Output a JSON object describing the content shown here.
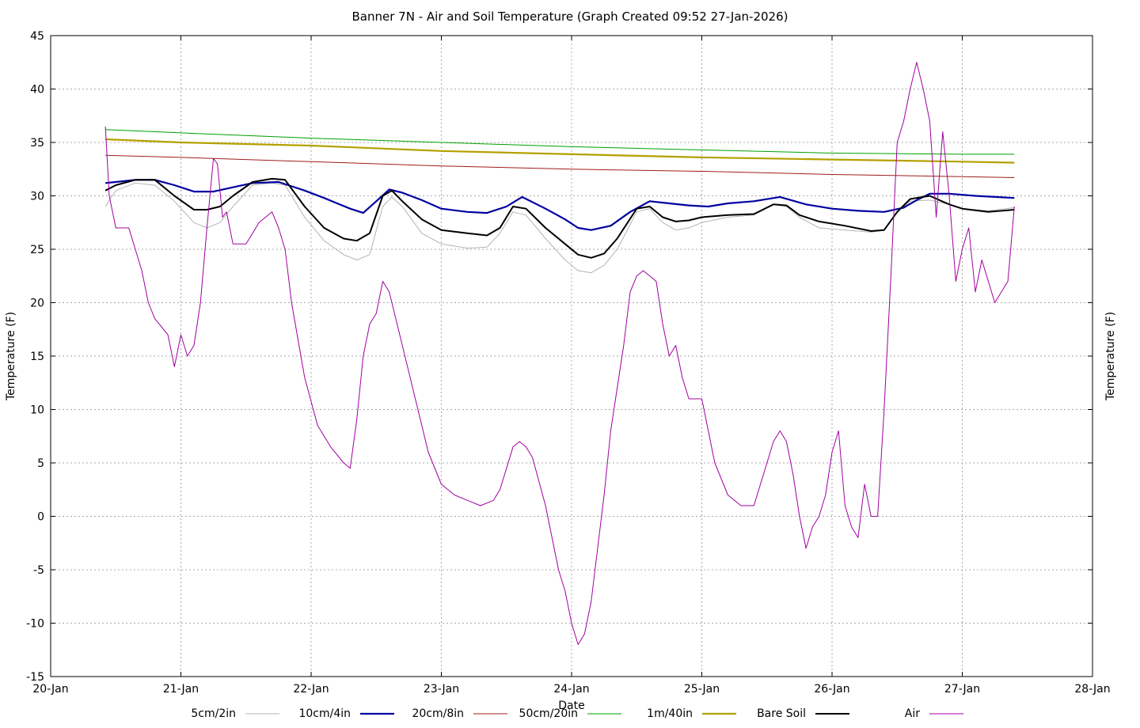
{
  "chart_data": {
    "type": "line",
    "title": "Banner 7N - Air and Soil Temperature (Graph Created 09:52 27-Jan-2026)",
    "xlabel": "Date",
    "ylabel": "Temperature (F)",
    "ylabel_right": "Temperature (F)",
    "ylim": [
      -15,
      45
    ],
    "yticks": [
      "-15",
      "-10",
      "-5",
      "0",
      "5",
      "10",
      "15",
      "20",
      "25",
      "30",
      "35",
      "40",
      "45"
    ],
    "xlim": [
      0,
      8
    ],
    "xticks": [
      "20-Jan",
      "21-Jan",
      "22-Jan",
      "23-Jan",
      "24-Jan",
      "25-Jan",
      "26-Jan",
      "27-Jan",
      "28-Jan"
    ],
    "x_unit": "days since 20-Jan 00:00",
    "grid": true,
    "legend": "bottom",
    "series": [
      {
        "name": "5cm/2in",
        "color": "#b4b4b4",
        "width": 1,
        "x": [
          0.42,
          0.5,
          0.65,
          0.8,
          0.95,
          1.1,
          1.2,
          1.3,
          1.4,
          1.55,
          1.7,
          1.8,
          1.95,
          2.1,
          2.25,
          2.35,
          2.45,
          2.55,
          2.62,
          2.7,
          2.85,
          3.0,
          3.2,
          3.35,
          3.45,
          3.55,
          3.65,
          3.8,
          3.95,
          4.05,
          4.15,
          4.25,
          4.35,
          4.5,
          4.6,
          4.7,
          4.8,
          4.9,
          5.0,
          5.2,
          5.4,
          5.55,
          5.65,
          5.75,
          5.9,
          6.1,
          6.3,
          6.4,
          6.5,
          6.6,
          6.75,
          6.9,
          7.0,
          7.2,
          7.4
        ],
        "y": [
          29.0,
          30.5,
          31.2,
          31.0,
          29.5,
          27.5,
          27.0,
          27.5,
          29.0,
          31.0,
          31.2,
          31.0,
          28.0,
          25.8,
          24.5,
          24.0,
          24.5,
          29.0,
          29.9,
          29.0,
          26.5,
          25.5,
          25.1,
          25.2,
          26.5,
          28.5,
          28.2,
          26.0,
          24.0,
          23.0,
          22.8,
          23.5,
          25.0,
          28.5,
          28.8,
          27.5,
          26.8,
          27.0,
          27.5,
          28.0,
          28.2,
          29.2,
          29.0,
          28.0,
          27.0,
          26.8,
          26.6,
          26.8,
          28.5,
          29.5,
          29.6,
          29.2,
          28.8,
          28.6,
          28.9
        ]
      },
      {
        "name": "10cm/4in",
        "color": "#0000a0",
        "width": 2.2,
        "x": [
          0.42,
          0.5,
          0.65,
          0.8,
          0.95,
          1.1,
          1.25,
          1.4,
          1.55,
          1.75,
          1.95,
          2.1,
          2.2,
          2.3,
          2.4,
          2.5,
          2.6,
          2.7,
          2.85,
          3.0,
          3.2,
          3.35,
          3.5,
          3.62,
          3.8,
          3.95,
          4.05,
          4.15,
          4.3,
          4.45,
          4.6,
          4.75,
          4.9,
          5.05,
          5.2,
          5.4,
          5.6,
          5.8,
          6.0,
          6.2,
          6.4,
          6.55,
          6.65,
          6.75,
          6.9,
          7.1,
          7.4
        ],
        "y": [
          31.2,
          31.3,
          31.5,
          31.5,
          31.0,
          30.4,
          30.4,
          30.8,
          31.2,
          31.3,
          30.5,
          29.8,
          29.3,
          28.8,
          28.4,
          29.5,
          30.6,
          30.3,
          29.6,
          28.8,
          28.5,
          28.4,
          29.0,
          29.9,
          28.8,
          27.8,
          27.0,
          26.8,
          27.2,
          28.5,
          29.5,
          29.3,
          29.1,
          29.0,
          29.3,
          29.5,
          29.9,
          29.2,
          28.8,
          28.6,
          28.5,
          28.9,
          29.6,
          30.2,
          30.2,
          30.0,
          29.8
        ]
      },
      {
        "name": "20cm/8in",
        "color": "#a01c1c",
        "width": 1,
        "x": [
          0.42,
          1.0,
          2.0,
          3.0,
          4.0,
          5.0,
          6.0,
          7.0,
          7.4
        ],
        "y": [
          33.8,
          33.6,
          33.2,
          32.8,
          32.5,
          32.3,
          32.0,
          31.8,
          31.7
        ]
      },
      {
        "name": "50cm/20in",
        "color": "#00a000",
        "width": 1,
        "x": [
          0.42,
          1.0,
          2.0,
          3.0,
          4.0,
          5.0,
          6.0,
          7.0,
          7.4
        ],
        "y": [
          36.2,
          35.9,
          35.4,
          35.0,
          34.6,
          34.3,
          34.0,
          33.9,
          33.9
        ]
      },
      {
        "name": "1m/40in",
        "color": "#b4a000",
        "width": 2.2,
        "x": [
          0.42,
          1.0,
          2.0,
          3.0,
          4.0,
          5.0,
          6.0,
          7.0,
          7.4
        ],
        "y": [
          35.3,
          35.0,
          34.7,
          34.2,
          33.9,
          33.6,
          33.4,
          33.2,
          33.1
        ]
      },
      {
        "name": "Bare Soil",
        "color": "#000000",
        "width": 2,
        "x": [
          0.42,
          0.5,
          0.65,
          0.8,
          0.95,
          1.1,
          1.2,
          1.3,
          1.4,
          1.55,
          1.7,
          1.8,
          1.95,
          2.1,
          2.25,
          2.35,
          2.45,
          2.55,
          2.62,
          2.7,
          2.85,
          3.0,
          3.2,
          3.35,
          3.45,
          3.55,
          3.65,
          3.8,
          3.95,
          4.05,
          4.15,
          4.25,
          4.35,
          4.5,
          4.6,
          4.7,
          4.8,
          4.9,
          5.0,
          5.2,
          5.4,
          5.55,
          5.65,
          5.75,
          5.9,
          6.1,
          6.3,
          6.4,
          6.5,
          6.6,
          6.75,
          6.9,
          7.0,
          7.2,
          7.4
        ],
        "y": [
          30.5,
          31.0,
          31.5,
          31.5,
          30.0,
          28.7,
          28.7,
          29.0,
          30.0,
          31.3,
          31.6,
          31.5,
          29.0,
          27.0,
          26.0,
          25.8,
          26.5,
          30.0,
          30.5,
          29.5,
          27.8,
          26.8,
          26.5,
          26.3,
          27.0,
          29.0,
          28.8,
          27.0,
          25.5,
          24.5,
          24.2,
          24.6,
          26.0,
          28.8,
          29.0,
          28.0,
          27.6,
          27.7,
          28.0,
          28.2,
          28.3,
          29.2,
          29.1,
          28.2,
          27.6,
          27.2,
          26.7,
          26.8,
          28.5,
          29.7,
          30.0,
          29.2,
          28.8,
          28.5,
          28.7
        ]
      },
      {
        "name": "Air",
        "color": "#a000a0",
        "width": 1,
        "x": [
          0.42,
          0.45,
          0.5,
          0.6,
          0.7,
          0.75,
          0.8,
          0.9,
          0.95,
          1.0,
          1.05,
          1.1,
          1.15,
          1.2,
          1.25,
          1.28,
          1.32,
          1.35,
          1.4,
          1.5,
          1.6,
          1.7,
          1.75,
          1.8,
          1.85,
          1.95,
          2.05,
          2.15,
          2.25,
          2.3,
          2.35,
          2.4,
          2.45,
          2.5,
          2.55,
          2.6,
          2.7,
          2.8,
          2.9,
          3.0,
          3.1,
          3.2,
          3.3,
          3.4,
          3.45,
          3.5,
          3.55,
          3.6,
          3.65,
          3.7,
          3.8,
          3.9,
          3.95,
          4.0,
          4.05,
          4.1,
          4.15,
          4.2,
          4.25,
          4.3,
          4.4,
          4.45,
          4.5,
          4.55,
          4.6,
          4.65,
          4.7,
          4.75,
          4.8,
          4.85,
          4.9,
          5.0,
          5.1,
          5.2,
          5.3,
          5.4,
          5.5,
          5.55,
          5.6,
          5.65,
          5.7,
          5.75,
          5.8,
          5.85,
          5.9,
          5.95,
          6.0,
          6.05,
          6.1,
          6.15,
          6.2,
          6.25,
          6.3,
          6.35,
          6.4,
          6.45,
          6.5,
          6.55,
          6.6,
          6.65,
          6.7,
          6.75,
          6.8,
          6.85,
          6.9,
          6.95,
          7.0,
          7.05,
          7.1,
          7.15,
          7.2,
          7.25,
          7.3,
          7.35,
          7.4
        ],
        "y": [
          36.5,
          30.0,
          27.0,
          27.0,
          23.0,
          20.0,
          18.5,
          17.0,
          14.0,
          17.0,
          15.0,
          16.0,
          20.0,
          27.0,
          33.5,
          33.0,
          28.0,
          28.5,
          25.5,
          25.5,
          27.5,
          28.5,
          27.0,
          25.0,
          20.0,
          13.0,
          8.5,
          6.5,
          5.0,
          4.5,
          9.0,
          15.0,
          18.0,
          19.0,
          22.0,
          21.0,
          16.0,
          11.0,
          6.0,
          3.0,
          2.0,
          1.5,
          1.0,
          1.5,
          2.5,
          4.5,
          6.5,
          7.0,
          6.5,
          5.5,
          1.0,
          -5.0,
          -7.0,
          -10.0,
          -12.0,
          -11.0,
          -8.0,
          -3.0,
          2.0,
          8.0,
          16.0,
          21.0,
          22.5,
          23.0,
          22.5,
          22.0,
          18.0,
          15.0,
          16.0,
          13.0,
          11.0,
          11.0,
          5.0,
          2.0,
          1.0,
          1.0,
          5.0,
          7.0,
          8.0,
          7.0,
          4.0,
          0.0,
          -3.0,
          -1.0,
          0.0,
          2.0,
          6.0,
          8.0,
          1.0,
          -1.0,
          -2.0,
          3.0,
          0.0,
          0.0,
          10.0,
          22.0,
          35.0,
          37.0,
          40.0,
          42.5,
          40.0,
          37.0,
          28.0,
          36.0,
          30.0,
          22.0,
          25.0,
          27.0,
          21.0,
          24.0,
          22.0,
          20.0,
          21.0,
          22.0,
          29.0
        ]
      }
    ]
  }
}
